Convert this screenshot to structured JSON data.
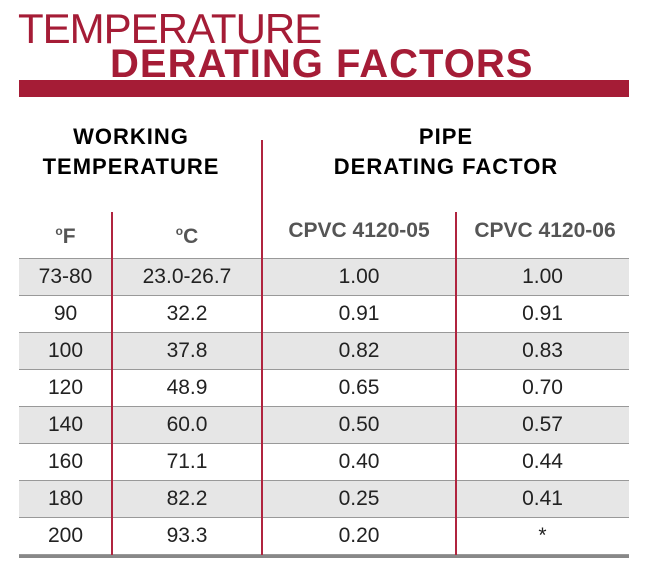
{
  "title": {
    "line1": "TEMPERATURE",
    "line2": "DERATING FACTORS"
  },
  "group_headers": {
    "working": [
      "WORKING",
      "TEMPERATURE"
    ],
    "pipe": [
      "PIPE",
      "DERATING FACTOR"
    ]
  },
  "columns": [
    {
      "sup": "o",
      "label": "F"
    },
    {
      "sup": "o",
      "label": "C"
    },
    {
      "label": "CPVC 4120-05"
    },
    {
      "label": "CPVC 4120-06"
    }
  ],
  "rows": [
    [
      "73-80",
      "23.0-26.7",
      "1.00",
      "1.00"
    ],
    [
      "90",
      "32.2",
      "0.91",
      "0.91"
    ],
    [
      "100",
      "37.8",
      "0.82",
      "0.83"
    ],
    [
      "120",
      "48.9",
      "0.65",
      "0.70"
    ],
    [
      "140",
      "60.0",
      "0.50",
      "0.57"
    ],
    [
      "160",
      "71.1",
      "0.40",
      "0.44"
    ],
    [
      "180",
      "82.2",
      "0.25",
      "0.41"
    ],
    [
      "200",
      "93.3",
      "0.20",
      "*"
    ]
  ],
  "colors": {
    "accent": "#a51c36",
    "row_alt": "#e6e6e6"
  }
}
